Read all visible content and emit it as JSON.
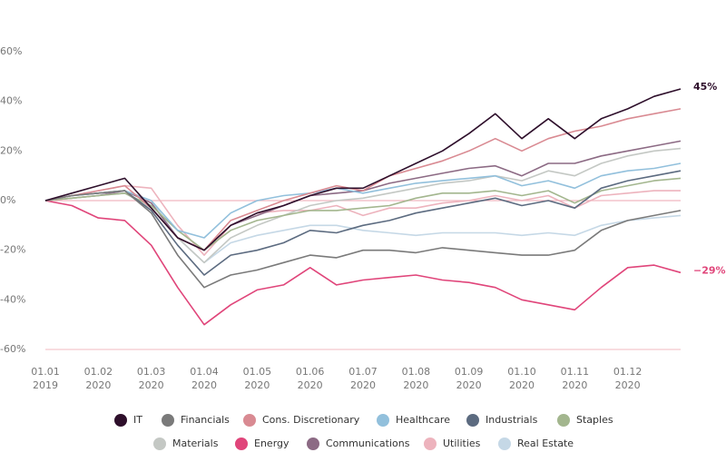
{
  "chart_data": {
    "type": "line",
    "categories": [
      [
        "01.01",
        "2019"
      ],
      null,
      [
        "01.02",
        "2020"
      ],
      null,
      [
        "01.03",
        "2020"
      ],
      null,
      [
        "01.04",
        "2020"
      ],
      null,
      [
        "01.05",
        "2020"
      ],
      null,
      [
        "01.06",
        "2020"
      ],
      null,
      [
        "01.07",
        "2020"
      ],
      null,
      [
        "01.08",
        "2020"
      ],
      null,
      [
        "01.09",
        "2020"
      ],
      null,
      [
        "01.10",
        "2020"
      ],
      null,
      [
        "01.11",
        "2020"
      ],
      null,
      [
        "01.12",
        "2020"
      ],
      null,
      null
    ],
    "ylim": [
      -60,
      60
    ],
    "yticks": [
      {
        "value": 60,
        "label": "60%"
      },
      {
        "value": 40,
        "label": "40%"
      },
      {
        "value": 20,
        "label": "20%"
      },
      {
        "value": 0,
        "label": "0%"
      },
      {
        "value": -20,
        "label": "-20%"
      },
      {
        "value": -40,
        "label": "-40%"
      },
      {
        "value": -60,
        "label": "-60%"
      }
    ],
    "zero_line": true,
    "grid": false,
    "legend": "bottom",
    "series": [
      {
        "name": "IT",
        "color": "#2e0f2b",
        "values": [
          0,
          3,
          6,
          9,
          -3,
          -15,
          -20,
          -10,
          -5,
          -2,
          2,
          5,
          5,
          10,
          15,
          20,
          27,
          35,
          25,
          33,
          25,
          33,
          37,
          42,
          45
        ],
        "value_labels": [
          null,
          null,
          null,
          null,
          null,
          null,
          null,
          null,
          null,
          null,
          null,
          null,
          null,
          null,
          null,
          null,
          null,
          null,
          null,
          null,
          null,
          null,
          null,
          null,
          "45%"
        ]
      },
      {
        "name": "Financials",
        "color": "#7a7a7a",
        "values": [
          0,
          2,
          3,
          4,
          -5,
          -22,
          -35,
          -30,
          -28,
          -25,
          -22,
          -23,
          -20,
          -20,
          -21,
          -19,
          -20,
          -21,
          -22,
          -22,
          -20,
          -12,
          -8,
          -6,
          -4
        ]
      },
      {
        "name": "Cons. Discretionary",
        "color": "#d98a92",
        "values": [
          0,
          2,
          4,
          6,
          -3,
          -15,
          -20,
          -8,
          -4,
          0,
          3,
          6,
          4,
          10,
          13,
          16,
          20,
          25,
          20,
          25,
          28,
          30,
          33,
          35,
          37
        ]
      },
      {
        "name": "Healthcare",
        "color": "#92c0dc",
        "values": [
          0,
          2,
          3,
          4,
          0,
          -12,
          -15,
          -5,
          0,
          2,
          3,
          5,
          3,
          5,
          7,
          8,
          9,
          10,
          6,
          8,
          5,
          10,
          12,
          13,
          15
        ]
      },
      {
        "name": "Industrials",
        "color": "#5c6b80",
        "values": [
          0,
          2,
          3,
          4,
          -4,
          -18,
          -30,
          -22,
          -20,
          -17,
          -12,
          -13,
          -10,
          -8,
          -5,
          -3,
          -1,
          1,
          -2,
          0,
          -3,
          5,
          8,
          10,
          12
        ]
      },
      {
        "name": "Staples",
        "color": "#a3b68e",
        "values": [
          0,
          1,
          2,
          3,
          -2,
          -12,
          -20,
          -12,
          -8,
          -6,
          -4,
          -4,
          -3,
          -2,
          1,
          3,
          3,
          4,
          2,
          4,
          -1,
          4,
          6,
          8,
          9
        ]
      },
      {
        "name": "Materials",
        "color": "#c4c8c4",
        "values": [
          0,
          1,
          2,
          3,
          -3,
          -15,
          -25,
          -15,
          -10,
          -6,
          -2,
          0,
          1,
          3,
          5,
          7,
          8,
          10,
          8,
          12,
          10,
          15,
          18,
          20,
          21
        ]
      },
      {
        "name": "Energy",
        "color": "#e0457a",
        "values": [
          0,
          -2,
          -7,
          -8,
          -18,
          -35,
          -50,
          -42,
          -36,
          -34,
          -27,
          -34,
          -32,
          -31,
          -30,
          -32,
          -33,
          -35,
          -40,
          -42,
          -44,
          -35,
          -27,
          -26,
          -29
        ],
        "value_labels": [
          null,
          null,
          null,
          null,
          null,
          null,
          null,
          null,
          null,
          null,
          null,
          null,
          null,
          null,
          null,
          null,
          null,
          null,
          null,
          null,
          null,
          null,
          null,
          null,
          "−29%"
        ]
      },
      {
        "name": "Communications",
        "color": "#8c6a84",
        "values": [
          0,
          1,
          2,
          4,
          -1,
          -15,
          -20,
          -10,
          -6,
          -2,
          2,
          3,
          4,
          7,
          9,
          11,
          13,
          14,
          10,
          15,
          15,
          18,
          20,
          22,
          24
        ]
      },
      {
        "name": "Utilities",
        "color": "#edb3bd",
        "values": [
          0,
          2,
          4,
          6,
          5,
          -10,
          -22,
          -10,
          -5,
          -4,
          -4,
          -2,
          -6,
          -3,
          -3,
          -1,
          0,
          2,
          0,
          2,
          -3,
          2,
          3,
          4,
          4
        ]
      },
      {
        "name": "Real Estate",
        "color": "#c5d8e6",
        "values": [
          0,
          2,
          3,
          4,
          0,
          -15,
          -25,
          -17,
          -14,
          -12,
          -10,
          -10,
          -12,
          -13,
          -14,
          -13,
          -13,
          -13,
          -14,
          -13,
          -14,
          -10,
          -8,
          -7,
          -6
        ]
      }
    ]
  }
}
